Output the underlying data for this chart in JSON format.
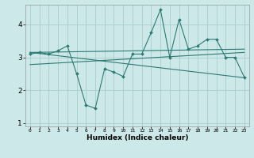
{
  "xlabel": "Humidex (Indice chaleur)",
  "ylabel": "",
  "bg_color": "#cce8e8",
  "line_color": "#2d7a72",
  "grid_color": "#aacccc",
  "x_data": [
    0,
    1,
    2,
    3,
    4,
    5,
    6,
    7,
    8,
    9,
    10,
    11,
    12,
    13,
    14,
    15,
    16,
    17,
    18,
    19,
    20,
    21,
    22,
    23
  ],
  "series1": [
    3.1,
    3.15,
    3.1,
    3.2,
    3.35,
    2.5,
    1.55,
    1.45,
    2.65,
    2.55,
    2.42,
    3.1,
    3.1,
    3.75,
    4.45,
    3.0,
    4.15,
    3.25,
    3.35,
    3.55,
    3.55,
    3.0,
    3.0,
    2.4
  ],
  "trend1_x": [
    0,
    23
  ],
  "trend1_y": [
    3.15,
    3.25
  ],
  "trend2_x": [
    0,
    23
  ],
  "trend2_y": [
    2.78,
    3.15
  ],
  "trend3_x": [
    0,
    23
  ],
  "trend3_y": [
    3.15,
    2.38
  ],
  "xlim": [
    -0.5,
    23.5
  ],
  "ylim": [
    0.9,
    4.6
  ],
  "yticks": [
    1,
    2,
    3,
    4
  ],
  "xticks": [
    0,
    1,
    2,
    3,
    4,
    5,
    6,
    7,
    8,
    9,
    10,
    11,
    12,
    13,
    14,
    15,
    16,
    17,
    18,
    19,
    20,
    21,
    22,
    23
  ]
}
